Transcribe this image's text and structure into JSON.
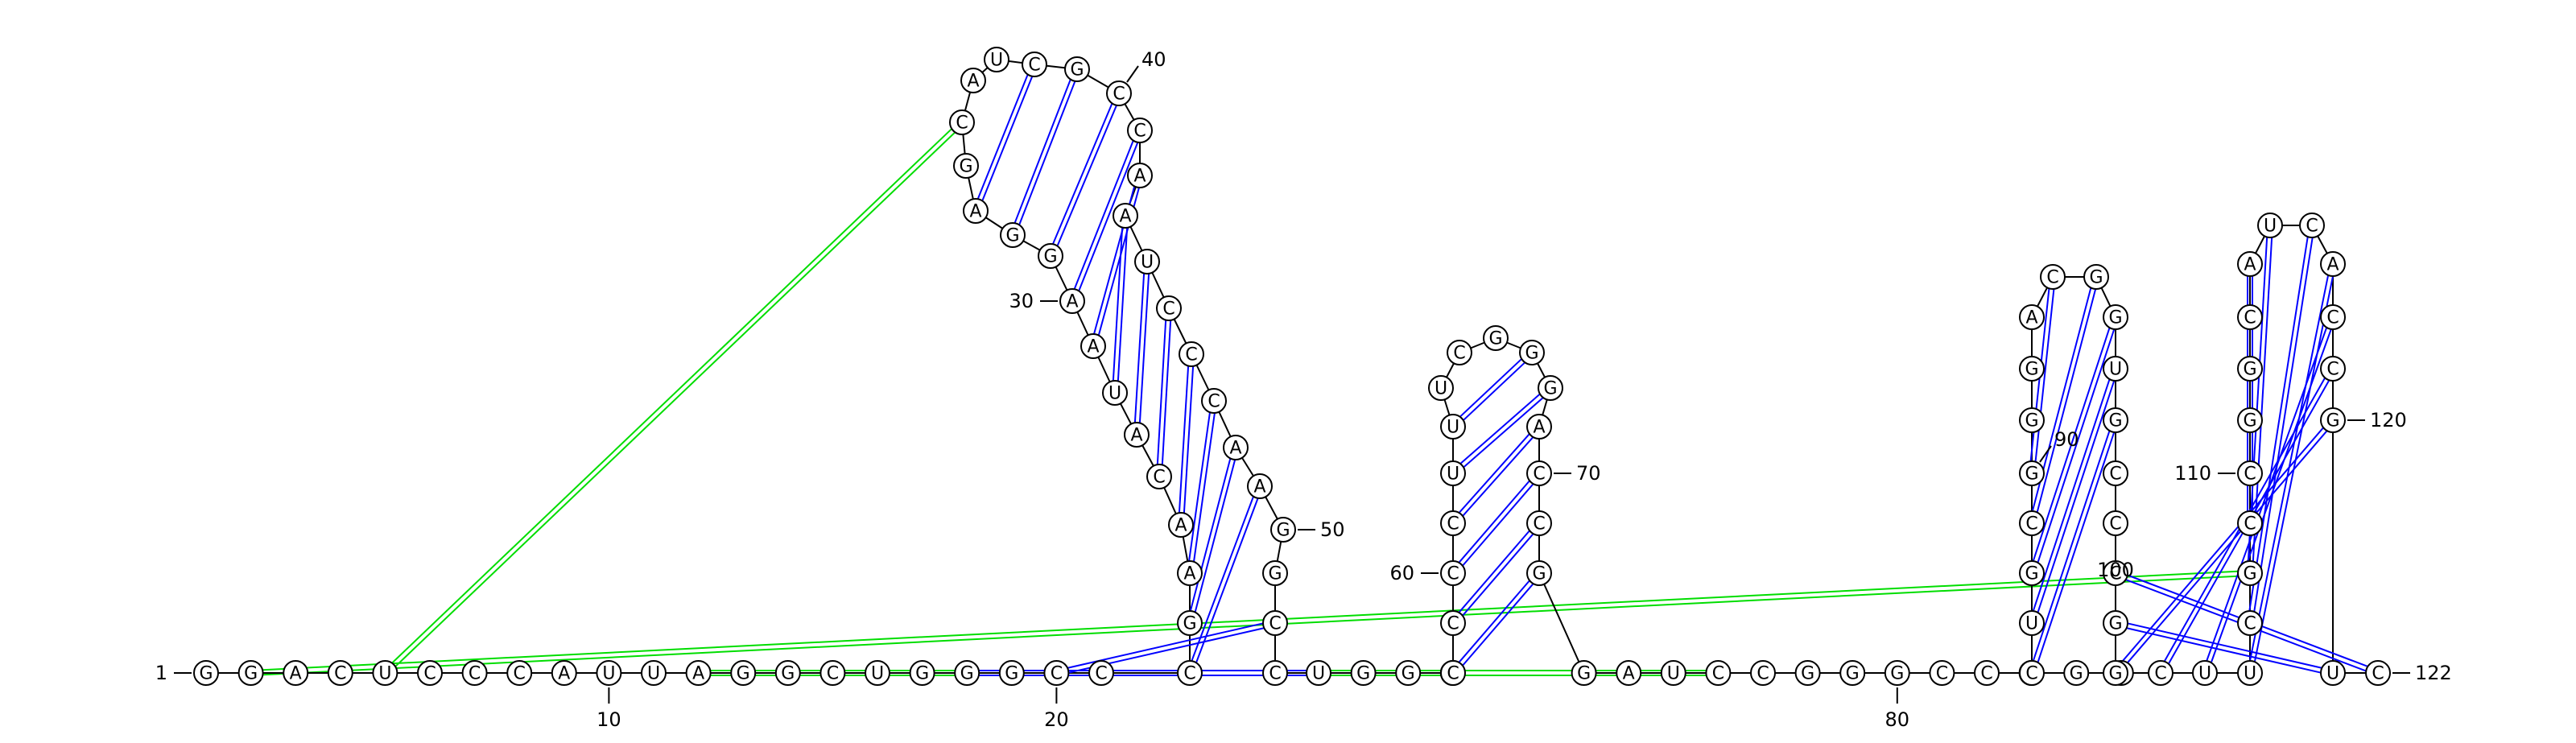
{
  "sequence": "GGACUCCCAUUAGGCUGGGCCCGAACAUAAGGAGCAUCGCCAAUCCCAAGGCCUGGUCCCCUUUCGGGACCGGAUCCGGGCCGGACUGCGGGACGGUGCCCGGCUUCGCCGGCAUCACCGUC",
  "sequence_length": 122,
  "colors": {
    "nucleotide_outline": "#000000",
    "secondary_pair": "#0000ff",
    "tertiary_interaction": "#00dd00"
  },
  "position_labels": [
    {
      "value": "1",
      "nt": 1
    },
    {
      "value": "10",
      "nt": 10
    },
    {
      "value": "20",
      "nt": 20
    },
    {
      "value": "30",
      "nt": 30
    },
    {
      "value": "40",
      "nt": 40
    },
    {
      "value": "50",
      "nt": 50
    },
    {
      "value": "60",
      "nt": 60
    },
    {
      "value": "70",
      "nt": 70
    },
    {
      "value": "80",
      "nt": 80
    },
    {
      "value": "90",
      "nt": 90
    },
    {
      "value": "100",
      "nt": 100
    },
    {
      "value": "110",
      "nt": 110
    },
    {
      "value": "120",
      "nt": 120
    },
    {
      "value": "122",
      "nt": 122
    }
  ],
  "base_pairs": [
    [
      22,
      49
    ],
    [
      23,
      48
    ],
    [
      24,
      47
    ],
    [
      25,
      46
    ],
    [
      26,
      45
    ],
    [
      27,
      44
    ],
    [
      28,
      43
    ],
    [
      29,
      42
    ],
    [
      30,
      41
    ],
    [
      31,
      40
    ],
    [
      32,
      39
    ],
    [
      33,
      38
    ],
    [
      18,
      54
    ],
    [
      19,
      53
    ],
    [
      20,
      52
    ],
    [
      58,
      72
    ],
    [
      59,
      71
    ],
    [
      60,
      70
    ],
    [
      61,
      69
    ],
    [
      62,
      68
    ],
    [
      63,
      67
    ],
    [
      86,
      98
    ],
    [
      87,
      97
    ],
    [
      88,
      96
    ],
    [
      89,
      95
    ],
    [
      90,
      94
    ],
    [
      101,
      122
    ],
    [
      102,
      121
    ],
    [
      103,
      120
    ],
    [
      104,
      119
    ],
    [
      105,
      118
    ],
    [
      106,
      117
    ],
    [
      107,
      116
    ],
    [
      108,
      115
    ],
    [
      109,
      114
    ]
  ],
  "wobble_pairs": [
    [
      93,
      95
    ],
    [
      104,
      119
    ],
    [
      108,
      115
    ]
  ],
  "tertiary_interactions": [
    [
      5,
      35
    ],
    [
      2,
      108
    ],
    [
      12,
      76
    ],
    [
      22,
      54
    ],
    [
      21,
      57
    ]
  ]
}
